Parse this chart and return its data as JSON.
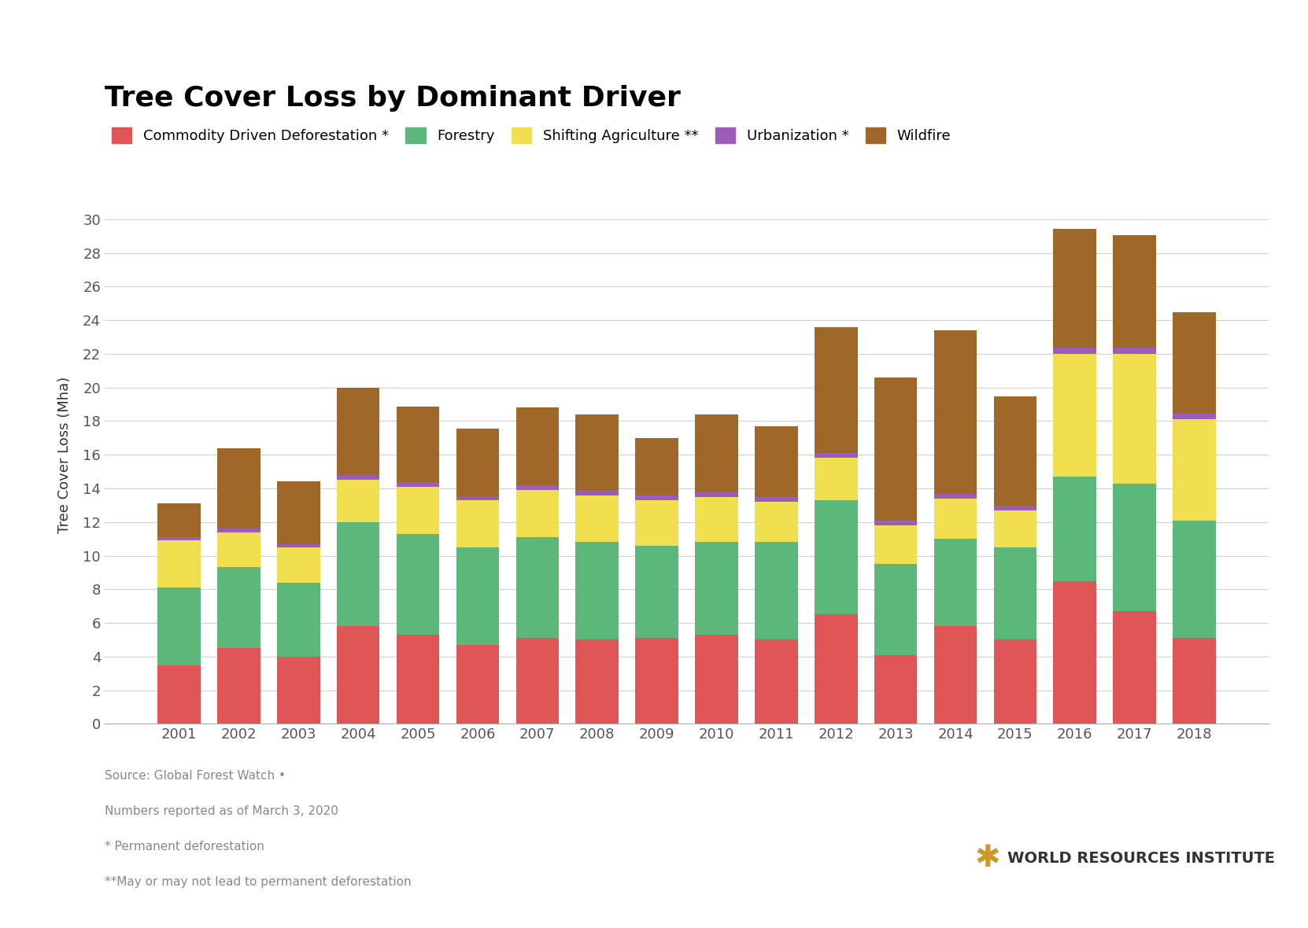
{
  "title": "Tree Cover Loss by Dominant Driver",
  "ylabel": "Tree Cover Loss (Mha)",
  "years": [
    2001,
    2002,
    2003,
    2004,
    2005,
    2006,
    2007,
    2008,
    2009,
    2010,
    2011,
    2012,
    2013,
    2014,
    2015,
    2016,
    2017,
    2018
  ],
  "categories": [
    "Commodity Driven Deforestation *",
    "Forestry",
    "Shifting Agriculture **",
    "Urbanization *",
    "Wildfire"
  ],
  "colors": [
    "#e05555",
    "#5cb87a",
    "#f0e050",
    "#9b5db8",
    "#a06828"
  ],
  "data": {
    "Commodity Driven Deforestation *": [
      3.5,
      4.5,
      4.0,
      5.8,
      5.3,
      4.7,
      5.1,
      5.0,
      5.1,
      5.3,
      5.0,
      6.5,
      4.1,
      5.8,
      5.0,
      8.5,
      6.7,
      5.1
    ],
    "Forestry": [
      4.6,
      4.8,
      4.4,
      6.2,
      6.0,
      5.8,
      6.0,
      5.8,
      5.5,
      5.5,
      5.8,
      6.8,
      5.4,
      5.2,
      5.5,
      6.2,
      7.6,
      7.0
    ],
    "Shifting Agriculture **": [
      2.8,
      2.1,
      2.1,
      2.5,
      2.8,
      2.8,
      2.8,
      2.8,
      2.7,
      2.7,
      2.4,
      2.5,
      2.3,
      2.4,
      2.2,
      7.3,
      7.7,
      6.0
    ],
    "Urbanization *": [
      0.2,
      0.2,
      0.2,
      0.3,
      0.25,
      0.25,
      0.3,
      0.28,
      0.28,
      0.28,
      0.28,
      0.28,
      0.28,
      0.28,
      0.28,
      0.35,
      0.35,
      0.35
    ],
    "Wildfire": [
      2.0,
      4.8,
      3.7,
      5.2,
      4.5,
      4.0,
      4.6,
      4.5,
      3.4,
      4.6,
      4.2,
      7.5,
      8.5,
      9.7,
      6.5,
      7.1,
      6.7,
      6.0
    ]
  },
  "ylim": [
    0,
    32
  ],
  "yticks": [
    0,
    2,
    4,
    6,
    8,
    10,
    12,
    14,
    16,
    18,
    20,
    22,
    24,
    26,
    28,
    30
  ],
  "background_color": "#ffffff",
  "grid_color": "#d0d0d0",
  "title_fontsize": 26,
  "axis_fontsize": 13,
  "tick_fontsize": 13,
  "legend_fontsize": 13,
  "footnote_lines": [
    "Source: Global Forest Watch •",
    "Numbers reported as of March 3, 2020",
    "* Permanent deforestation",
    "**May or may not lead to permanent deforestation"
  ],
  "wri_text": "WORLD RESOURCES INSTITUTE"
}
